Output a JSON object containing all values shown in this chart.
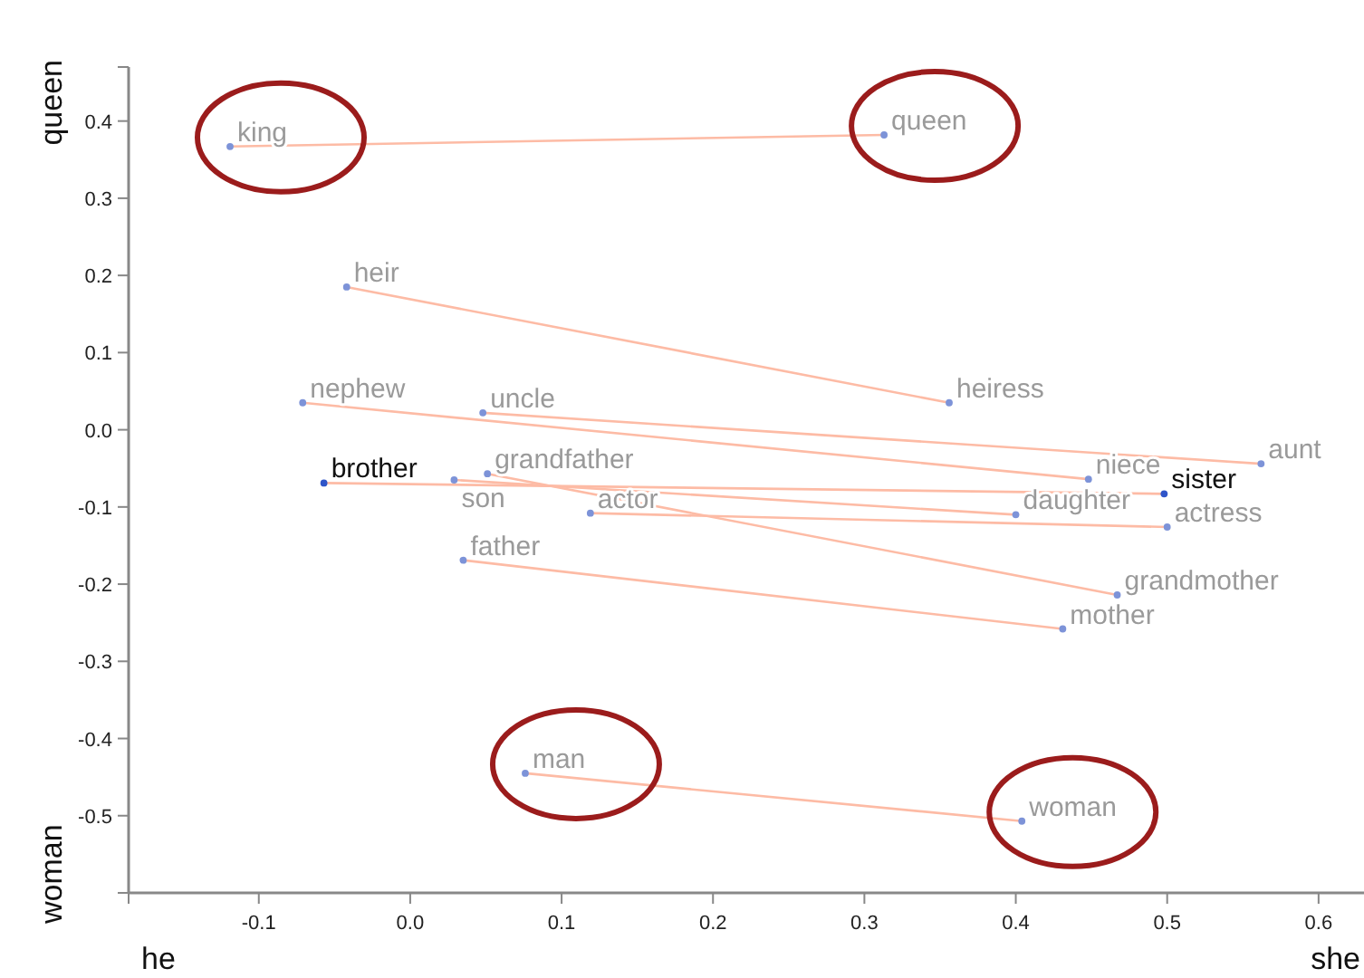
{
  "chart_data": {
    "type": "scatter",
    "xlabel": "she",
    "ylabel": "queen",
    "annotations": [
      "he",
      "woman"
    ],
    "xlim": [
      -0.186,
      0.63
    ],
    "ylim": [
      -0.6,
      0.47
    ],
    "xticks": [
      -0.1,
      {
        "value": 0,
        "label": "0.0"
      },
      0.1,
      0.2,
      0.3,
      0.4,
      0.5,
      0.6
    ],
    "yticks": [
      -0.5,
      -0.4,
      -0.3,
      -0.2,
      -0.1,
      {
        "value": 0,
        "label": "0.0"
      },
      0.1,
      0.2,
      0.3,
      0.4
    ],
    "grid": false,
    "marker": "circle",
    "series": [
      {
        "type": "line",
        "marker": "none",
        "color": "#fdbba5",
        "x": [
          -0.119,
          0.313
        ],
        "values": [
          0.367,
          0.382
        ]
      },
      {
        "type": "line",
        "marker": "none",
        "color": "#fdbba5",
        "x": [
          -0.042,
          0.356
        ],
        "values": [
          0.185,
          0.035
        ]
      },
      {
        "type": "line",
        "marker": "none",
        "color": "#fdbba5",
        "x": [
          -0.071,
          0.448
        ],
        "values": [
          0.035,
          -0.064
        ]
      },
      {
        "type": "line",
        "marker": "none",
        "color": "#fdbba5",
        "x": [
          0.048,
          0.562
        ],
        "values": [
          0.022,
          -0.044
        ]
      },
      {
        "type": "line",
        "marker": "none",
        "color": "#fdbba5",
        "x": [
          -0.057,
          0.498
        ],
        "values": [
          -0.069,
          -0.083
        ]
      },
      {
        "type": "line",
        "marker": "none",
        "color": "#fdbba5",
        "x": [
          0.029,
          0.4
        ],
        "values": [
          -0.065,
          -0.11
        ]
      },
      {
        "type": "line",
        "marker": "none",
        "color": "#fdbba5",
        "x": [
          0.051,
          0.467
        ],
        "values": [
          -0.057,
          -0.214
        ]
      },
      {
        "type": "line",
        "marker": "none",
        "color": "#fdbba5",
        "x": [
          0.119,
          0.5
        ],
        "values": [
          -0.108,
          -0.126
        ]
      },
      {
        "type": "line",
        "marker": "none",
        "color": "#fdbba5",
        "x": [
          0.035,
          0.431
        ],
        "values": [
          -0.169,
          -0.258
        ]
      },
      {
        "type": "line",
        "marker": "none",
        "color": "#fdbba5",
        "x": [
          0.076,
          0.404
        ],
        "values": [
          -0.445,
          -0.507
        ]
      },
      {
        "type": "scatter",
        "color": "#7d93d8",
        "x": [
          -0.042,
          0.356,
          -0.071,
          0.448,
          0.048,
          0.562,
          0.029,
          0.4,
          0.051,
          0.467,
          0.119,
          0.5,
          0.035,
          0.431
        ],
        "values": [
          0.185,
          0.035,
          0.035,
          -0.064,
          0.022,
          -0.044,
          -0.065,
          -0.11,
          -0.057,
          -0.214,
          -0.108,
          -0.126,
          -0.169,
          -0.258
        ],
        "value_labels": [
          "heir",
          "heiress",
          "nephew",
          "niece",
          "uncle",
          "aunt",
          "son",
          "daughter",
          "grandfather",
          "grandmother",
          "actor",
          "actress",
          "father",
          "mother"
        ]
      },
      {
        "type": "scatter",
        "color": "#2f55c9",
        "x": [
          -0.057,
          0.498
        ],
        "values": [
          -0.069,
          -0.083
        ],
        "value_labels": [
          "brother",
          "sister"
        ]
      },
      {
        "type": "scatter",
        "color": "#7d93d8",
        "x": [
          -0.119,
          0.313,
          0.076,
          0.404
        ],
        "values": [
          0.367,
          0.382,
          -0.445,
          -0.507
        ],
        "value_labels": [
          "king",
          "queen",
          "man",
          "woman"
        ]
      }
    ]
  }
}
